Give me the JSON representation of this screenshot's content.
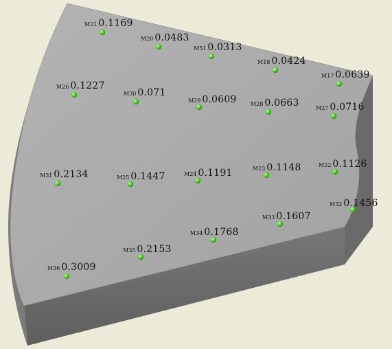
{
  "viewport": {
    "background_color": "#ecebd9",
    "part_top_color": "#a9a9a9",
    "part_side_color": "#6d6d6d",
    "point_color": "#4fd12a"
  },
  "markers": [
    {
      "id": "M21",
      "value": "0.1169"
    },
    {
      "id": "M20",
      "value": "0.0483"
    },
    {
      "id": "M51",
      "value": "0.0313"
    },
    {
      "id": "M18",
      "value": "0.0424"
    },
    {
      "id": "M17",
      "value": "0.0639"
    },
    {
      "id": "M26",
      "value": "0.1227"
    },
    {
      "id": "M30",
      "value": "0.071"
    },
    {
      "id": "M29",
      "value": "0.0609"
    },
    {
      "id": "M28",
      "value": "0.0663"
    },
    {
      "id": "M27",
      "value": "0.0716"
    },
    {
      "id": "M31",
      "value": "0.2134"
    },
    {
      "id": "M25",
      "value": "0.1447"
    },
    {
      "id": "M24",
      "value": "0.1191"
    },
    {
      "id": "M23",
      "value": "0.1148"
    },
    {
      "id": "M22",
      "value": "0.1126"
    },
    {
      "id": "M32",
      "value": "0.1456"
    },
    {
      "id": "M33",
      "value": "0.1607"
    },
    {
      "id": "M34",
      "value": "0.1768"
    },
    {
      "id": "M35",
      "value": "0.2153"
    },
    {
      "id": "M36",
      "value": "0.3009"
    }
  ]
}
